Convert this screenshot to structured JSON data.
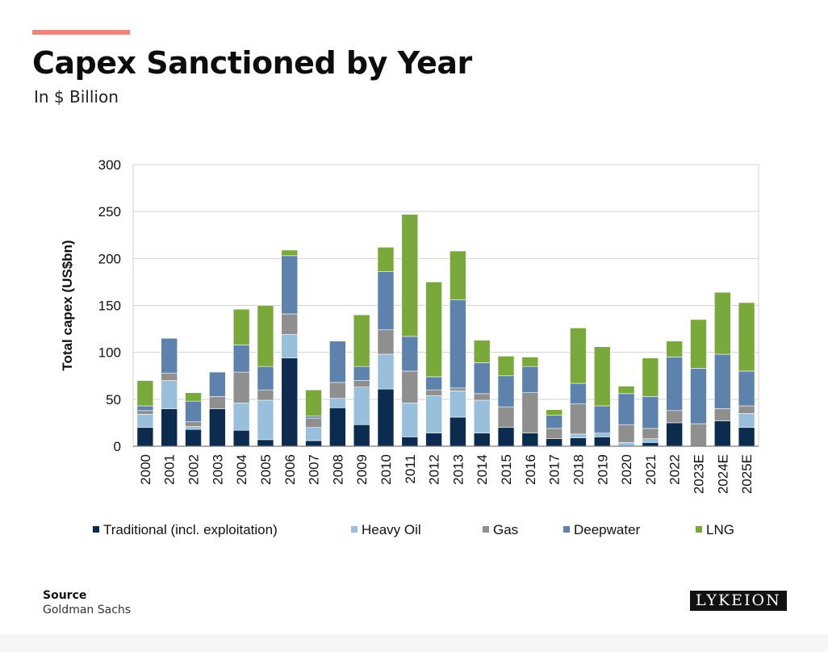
{
  "header": {
    "title": "Capex Sanctioned by Year",
    "subtitle": "In $ Billion"
  },
  "source": {
    "label": "Source",
    "value": "Goldman Sachs"
  },
  "logo": {
    "text": "LYKEION"
  },
  "colors": {
    "accent": "#e8877c",
    "Traditional": "#0c2c4f",
    "Heavy Oil": "#98bfdb",
    "Gas": "#8f8f8f",
    "Deepwater": "#5d82ac",
    "LNG": "#79a93b"
  },
  "chart_data": {
    "type": "bar",
    "stacked": true,
    "ylabel": "Total capex (US$bn)",
    "ylim": [
      0,
      300
    ],
    "yticks": [
      0,
      50,
      100,
      150,
      200,
      250,
      300
    ],
    "legend_position": "bottom",
    "categories": [
      "2000",
      "2001",
      "2002",
      "2003",
      "2004",
      "2005",
      "2006",
      "2007",
      "2008",
      "2009",
      "2010",
      "2011",
      "2012",
      "2013",
      "2014",
      "2015",
      "2016",
      "2017",
      "2018",
      "2019",
      "2020",
      "2021",
      "2022",
      "2023E",
      "2024E",
      "2025E"
    ],
    "series": [
      {
        "name": "Traditional (incl. exploitation)",
        "values": [
          20,
          40,
          18,
          40,
          17,
          7,
          94,
          6,
          41,
          23,
          61,
          10,
          14,
          31,
          14,
          20,
          14,
          8,
          9,
          10,
          0,
          4,
          25,
          0,
          27,
          20
        ]
      },
      {
        "name": "Heavy Oil",
        "values": [
          14,
          30,
          3,
          0,
          29,
          42,
          25,
          14,
          10,
          40,
          37,
          36,
          40,
          28,
          35,
          0,
          0,
          0,
          4,
          4,
          4,
          4,
          0,
          0,
          0,
          15
        ]
      },
      {
        "name": "Gas",
        "values": [
          4,
          8,
          5,
          13,
          33,
          11,
          22,
          10,
          17,
          7,
          26,
          34,
          6,
          3,
          7,
          22,
          43,
          11,
          32,
          0,
          19,
          11,
          13,
          24,
          13,
          8
        ]
      },
      {
        "name": "Deepwater",
        "values": [
          5,
          37,
          22,
          26,
          29,
          25,
          62,
          2,
          44,
          15,
          62,
          37,
          14,
          94,
          33,
          33,
          28,
          14,
          22,
          29,
          33,
          34,
          57,
          59,
          58,
          37
        ]
      },
      {
        "name": "LNG",
        "values": [
          27,
          0,
          9,
          0,
          38,
          65,
          6,
          28,
          0,
          55,
          26,
          130,
          101,
          52,
          24,
          21,
          10,
          6,
          59,
          63,
          8,
          41,
          17,
          52,
          66,
          73
        ]
      }
    ]
  }
}
